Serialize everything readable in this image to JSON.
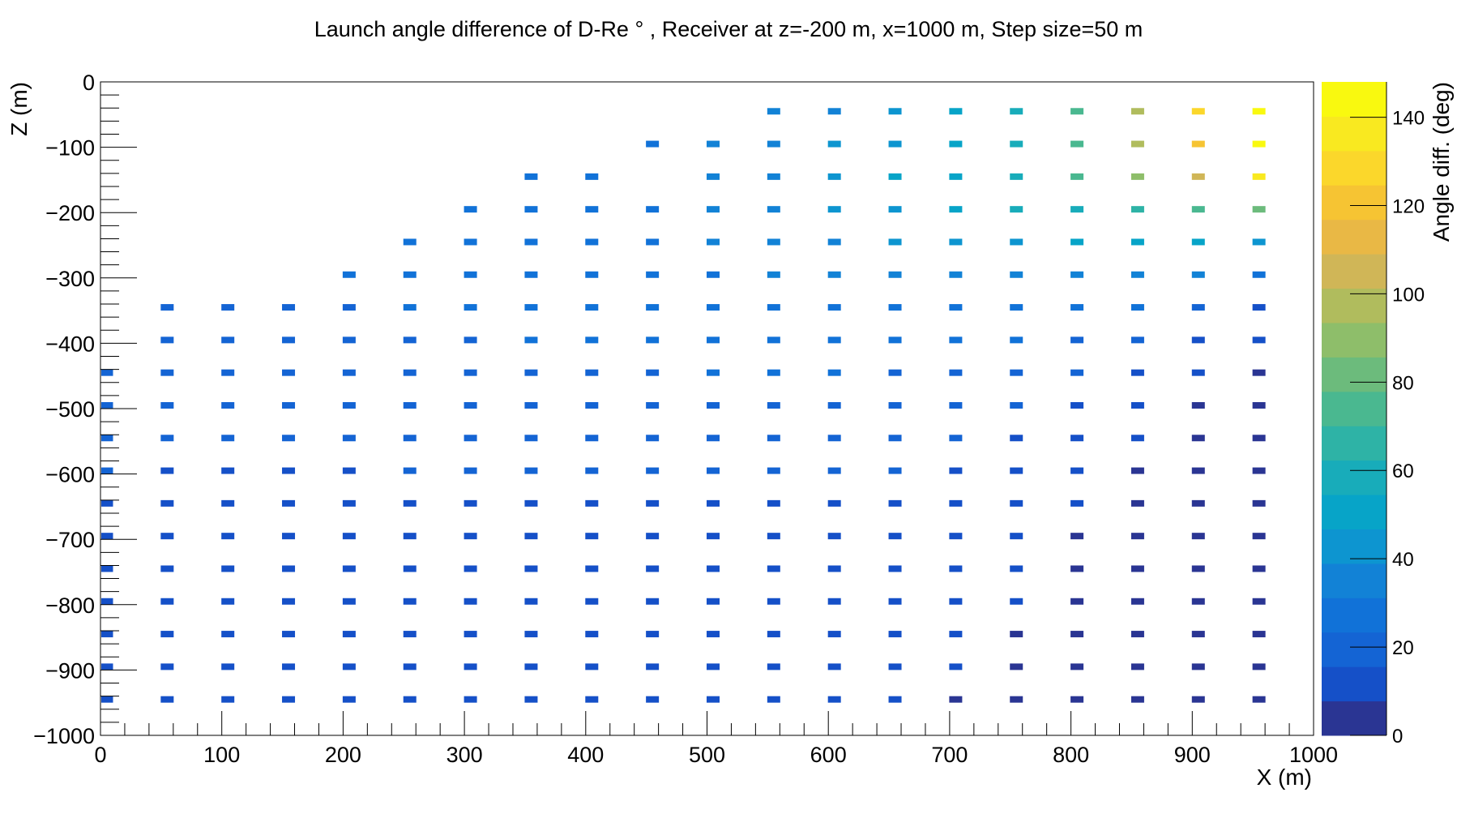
{
  "chart_data": {
    "type": "heatmap",
    "title": "Launch angle difference of D-Re ° , Receiver at z=-200 m, x=1000 m, Step size=50 m",
    "xlabel": "X (m)",
    "ylabel": "Z (m)",
    "zlabel": "Angle diff. (deg)",
    "xlim": [
      0,
      1000
    ],
    "ylim": [
      -1000,
      0
    ],
    "zlim": [
      0,
      148
    ],
    "x_ticks": [
      0,
      100,
      200,
      300,
      400,
      500,
      600,
      700,
      800,
      900,
      1000
    ],
    "x_tick_labels": [
      "0",
      "100",
      "200",
      "300",
      "400",
      "500",
      "600",
      "700",
      "800",
      "900",
      "1000"
    ],
    "y_ticks": [
      0,
      -100,
      -200,
      -300,
      -400,
      -500,
      -600,
      -700,
      -800,
      -900,
      -1000
    ],
    "y_tick_labels": [
      "0",
      "−100",
      "−200",
      "−300",
      "−400",
      "−500",
      "−600",
      "−700",
      "−800",
      "−900",
      "−1000"
    ],
    "z_ticks": [
      0,
      20,
      40,
      60,
      80,
      100,
      120,
      140
    ],
    "z_tick_labels": [
      "0",
      "20",
      "40",
      "60",
      "80",
      "100",
      "120",
      "140"
    ],
    "colormap": [
      "#2a3593",
      "#1550c8",
      "#1464d4",
      "#1172d8",
      "#1282d6",
      "#0d95d0",
      "#07a4c8",
      "#18acba",
      "#2eb3a6",
      "#4ab890",
      "#6cbb7c",
      "#8ebe6a",
      "#b0bc5d",
      "#d0b657",
      "#e9b845",
      "#f6c433",
      "#fbd72b",
      "#f9e920",
      "#f9f90f"
    ],
    "x": [
      5,
      55,
      105,
      155,
      205,
      255,
      305,
      355,
      405,
      455,
      505,
      555,
      605,
      655,
      705,
      755,
      805,
      855,
      905,
      955
    ],
    "z": [
      -45,
      -95,
      -145,
      -195,
      -245,
      -295,
      -345,
      -395,
      -445,
      -495,
      -545,
      -595,
      -645,
      -695,
      -745,
      -795,
      -845,
      -895,
      -945
    ],
    "values": [
      [
        null,
        null,
        null,
        null,
        null,
        null,
        null,
        null,
        null,
        null,
        null,
        33,
        38,
        45,
        52,
        62,
        75,
        98,
        128,
        145
      ],
      [
        null,
        null,
        null,
        null,
        null,
        null,
        null,
        null,
        null,
        30,
        32,
        35,
        40,
        46,
        54,
        62,
        76,
        95,
        122,
        148
      ],
      [
        null,
        null,
        null,
        null,
        null,
        null,
        null,
        28,
        28,
        null,
        34,
        37,
        41,
        47,
        52,
        60,
        72,
        88,
        108,
        135
      ],
      [
        null,
        null,
        null,
        null,
        null,
        null,
        27,
        28,
        30,
        31,
        34,
        37,
        40,
        44,
        49,
        55,
        62,
        68,
        75,
        85
      ],
      [
        null,
        null,
        null,
        null,
        null,
        26,
        27,
        28,
        29,
        31,
        33,
        35,
        37,
        40,
        42,
        45,
        48,
        51,
        47,
        40
      ],
      [
        null,
        null,
        null,
        null,
        24,
        25,
        26,
        27,
        28,
        29,
        31,
        33,
        34,
        35,
        36,
        37,
        36,
        35,
        32,
        24
      ],
      [
        null,
        20,
        21,
        22,
        23,
        24,
        25,
        26,
        27,
        28,
        29,
        30,
        30,
        31,
        31,
        31,
        29,
        27,
        22,
        14
      ],
      [
        null,
        19,
        20,
        20,
        21,
        22,
        23,
        24,
        25,
        26,
        26,
        27,
        27,
        27,
        26,
        25,
        23,
        20,
        15,
        8
      ],
      [
        20,
        18,
        18,
        19,
        20,
        21,
        21,
        22,
        23,
        23,
        24,
        24,
        24,
        23,
        22,
        21,
        19,
        15,
        10,
        4
      ],
      [
        18,
        17,
        17,
        18,
        18,
        19,
        20,
        20,
        21,
        21,
        21,
        21,
        21,
        20,
        19,
        18,
        15,
        11,
        6,
        2
      ],
      [
        17,
        16,
        16,
        16,
        17,
        17,
        18,
        18,
        19,
        19,
        19,
        19,
        18,
        18,
        17,
        15,
        12,
        8,
        4,
        1
      ],
      [
        16,
        15,
        15,
        15,
        15,
        16,
        16,
        17,
        17,
        17,
        17,
        17,
        16,
        16,
        15,
        13,
        10,
        7,
        3,
        1
      ],
      [
        15,
        14,
        14,
        14,
        14,
        15,
        15,
        15,
        15,
        15,
        15,
        15,
        15,
        14,
        13,
        11,
        8,
        5,
        2,
        1
      ],
      [
        14,
        13,
        13,
        13,
        13,
        14,
        14,
        14,
        14,
        14,
        14,
        14,
        13,
        13,
        12,
        10,
        7,
        4,
        2,
        1
      ],
      [
        13,
        12,
        12,
        12,
        12,
        13,
        13,
        13,
        13,
        13,
        13,
        13,
        12,
        12,
        11,
        9,
        6,
        4,
        2,
        1
      ],
      [
        12,
        12,
        12,
        12,
        12,
        12,
        12,
        12,
        12,
        12,
        12,
        12,
        11,
        11,
        10,
        8,
        5,
        3,
        1,
        1
      ],
      [
        12,
        11,
        11,
        11,
        11,
        11,
        11,
        11,
        11,
        11,
        11,
        11,
        10,
        10,
        9,
        7,
        5,
        3,
        1,
        1
      ],
      [
        11,
        11,
        11,
        11,
        11,
        11,
        11,
        11,
        11,
        11,
        10,
        10,
        10,
        9,
        8,
        6,
        4,
        3,
        1,
        1
      ],
      [
        11,
        10,
        10,
        10,
        10,
        10,
        10,
        10,
        10,
        10,
        10,
        9,
        9,
        8,
        7,
        6,
        4,
        2,
        1,
        1
      ]
    ]
  }
}
